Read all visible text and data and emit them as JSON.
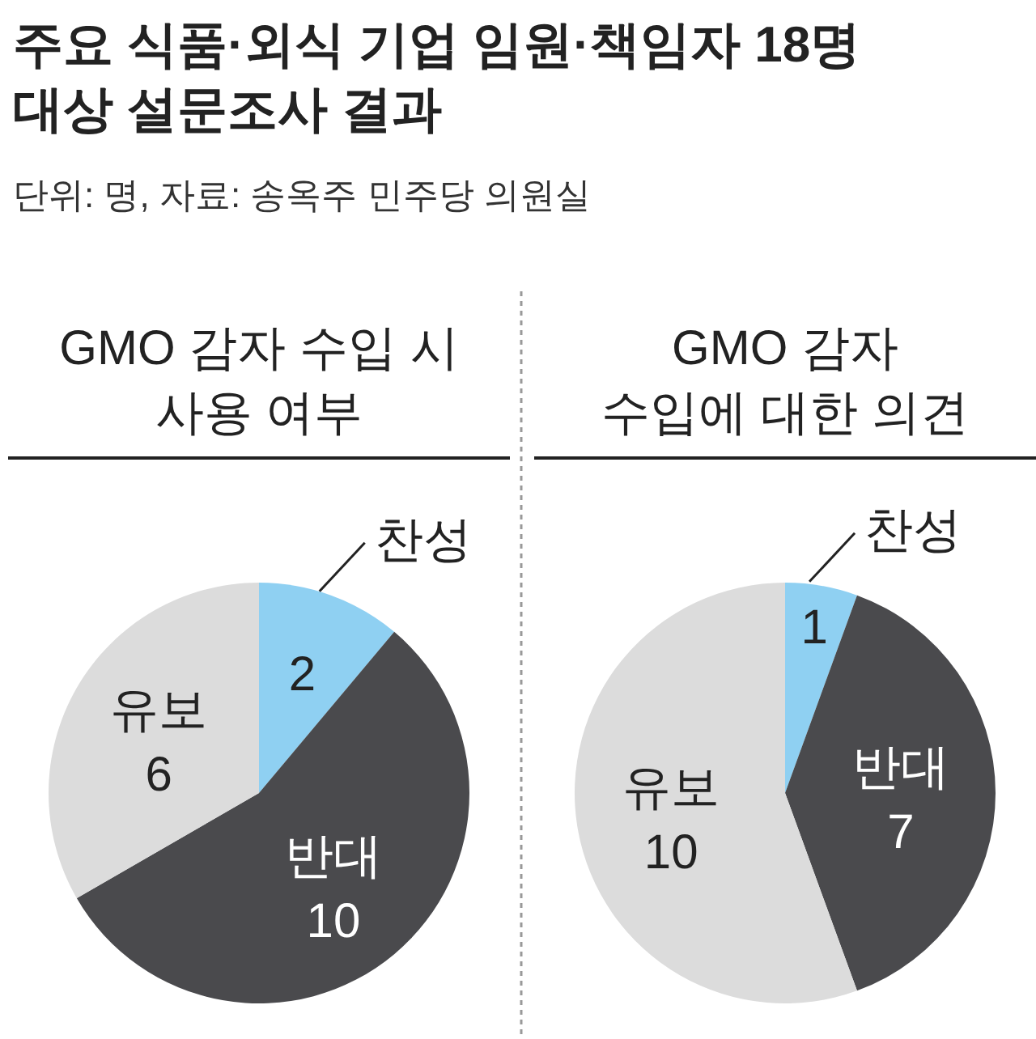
{
  "chart_data": [
    {
      "type": "pie",
      "title": "주요 식품·외식 기업 임원·책임자 18명 대상 설문조사 결과",
      "subtitle": "GMO 감자 수입 시 사용 여부",
      "annotations": [
        "단위: 명, 자료: 송옥주 민주당 의원실"
      ],
      "categories": [
        "찬성",
        "반대",
        "유보"
      ],
      "values": [
        2,
        10,
        6
      ],
      "colors": [
        "#8fd0f2",
        "#4a4a4d",
        "#dcdcdc"
      ],
      "data_labels": true
    },
    {
      "type": "pie",
      "subtitle": "GMO 감자 수입에 대한 의견",
      "categories": [
        "찬성",
        "반대",
        "유보"
      ],
      "values": [
        1,
        7,
        10
      ],
      "colors": [
        "#8fd0f2",
        "#4a4a4d",
        "#dcdcdc"
      ],
      "data_labels": true
    }
  ]
}
